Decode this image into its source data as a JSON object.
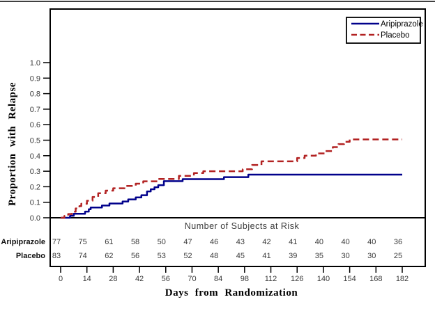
{
  "chart_data": {
    "type": "line",
    "subtype": "kaplan-meier-step",
    "title": "",
    "xlabel": "Days from Randomization",
    "ylabel": "Proportion with Relapse",
    "xlim": [
      0,
      182
    ],
    "ylim": [
      0.0,
      1.0
    ],
    "xticks": [
      0,
      14,
      28,
      42,
      56,
      70,
      84,
      98,
      112,
      126,
      140,
      154,
      168,
      182
    ],
    "yticks": [
      0.0,
      0.1,
      0.2,
      0.3,
      0.4,
      0.5,
      0.6,
      0.7,
      0.8,
      0.9,
      1.0
    ],
    "grid": false,
    "legend_position": "top-right",
    "series": [
      {
        "name": "Aripiprazole",
        "color": "#00008B",
        "style": "solid",
        "points": [
          [
            0,
            0
          ],
          [
            5,
            0.013
          ],
          [
            7,
            0.026
          ],
          [
            13,
            0.04
          ],
          [
            15,
            0.055
          ],
          [
            16,
            0.066
          ],
          [
            22,
            0.079
          ],
          [
            26,
            0.092
          ],
          [
            33,
            0.105
          ],
          [
            36,
            0.118
          ],
          [
            40,
            0.131
          ],
          [
            43,
            0.145
          ],
          [
            46,
            0.17
          ],
          [
            48,
            0.184
          ],
          [
            50,
            0.197
          ],
          [
            52,
            0.21
          ],
          [
            55,
            0.236
          ],
          [
            65,
            0.249
          ],
          [
            87,
            0.262
          ],
          [
            100,
            0.278
          ],
          [
            182,
            0.278
          ]
        ]
      },
      {
        "name": "Placebo",
        "color": "#B22222",
        "style": "dashed",
        "points": [
          [
            0,
            0
          ],
          [
            2,
            0.012
          ],
          [
            4,
            0.024
          ],
          [
            6,
            0.039
          ],
          [
            8,
            0.06
          ],
          [
            10,
            0.075
          ],
          [
            11,
            0.09
          ],
          [
            14,
            0.11
          ],
          [
            17,
            0.134
          ],
          [
            20,
            0.158
          ],
          [
            24,
            0.175
          ],
          [
            28,
            0.19
          ],
          [
            34,
            0.205
          ],
          [
            40,
            0.22
          ],
          [
            44,
            0.235
          ],
          [
            52,
            0.25
          ],
          [
            63,
            0.27
          ],
          [
            71,
            0.288
          ],
          [
            76,
            0.3
          ],
          [
            97,
            0.313
          ],
          [
            102,
            0.34
          ],
          [
            107,
            0.364
          ],
          [
            126,
            0.385
          ],
          [
            130,
            0.4
          ],
          [
            136,
            0.415
          ],
          [
            141,
            0.43
          ],
          [
            145,
            0.455
          ],
          [
            148,
            0.475
          ],
          [
            151,
            0.49
          ],
          [
            154,
            0.505
          ],
          [
            182,
            0.505
          ]
        ]
      }
    ],
    "at_risk": {
      "title": "Number of Subjects at Risk",
      "rows": [
        {
          "label": "Aripiprazole",
          "values": [
            77,
            75,
            61,
            58,
            50,
            47,
            46,
            43,
            42,
            41,
            40,
            40,
            40,
            36
          ]
        },
        {
          "label": "Placebo",
          "values": [
            83,
            74,
            62,
            56,
            53,
            52,
            48,
            45,
            41,
            39,
            35,
            30,
            30,
            25
          ]
        }
      ]
    }
  }
}
